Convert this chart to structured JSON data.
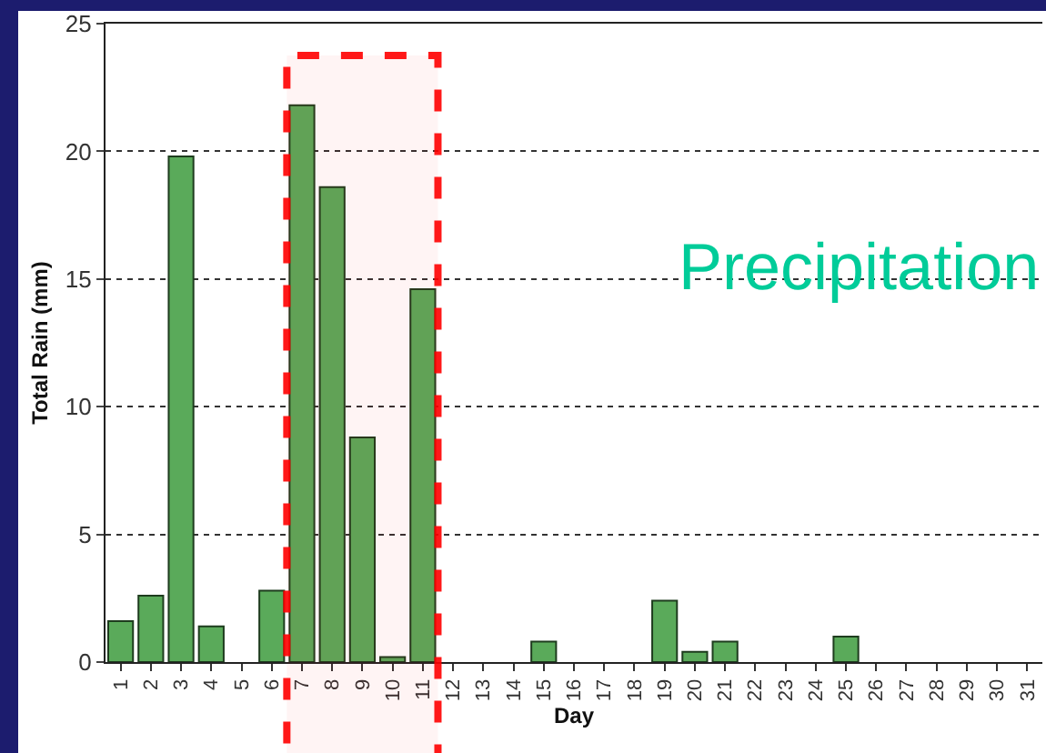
{
  "chart_data": {
    "type": "bar",
    "xlabel": "Day",
    "ylabel": "Total Rain (mm)",
    "categories": [
      "1",
      "2",
      "3",
      "4",
      "5",
      "6",
      "7",
      "8",
      "9",
      "10",
      "11",
      "12",
      "13",
      "14",
      "15",
      "16",
      "17",
      "18",
      "19",
      "20",
      "21",
      "22",
      "23",
      "24",
      "25",
      "26",
      "27",
      "28",
      "29",
      "30",
      "31"
    ],
    "values": [
      1.6,
      2.6,
      19.8,
      1.4,
      0,
      2.8,
      21.8,
      18.6,
      8.8,
      0.2,
      14.6,
      0,
      0,
      0,
      0.8,
      0,
      0,
      0,
      2.4,
      0.4,
      0.8,
      0,
      0,
      0,
      1.0,
      0,
      0,
      0,
      0,
      0,
      0
    ],
    "color": "#5aaa5a",
    "ylim": [
      0,
      25
    ],
    "yticks": [
      0,
      5,
      10,
      15,
      20,
      25
    ],
    "grid": "y",
    "bands": [
      {
        "axis": "x",
        "from": "7",
        "to": "11",
        "label": null,
        "color": "#ff0000"
      }
    ],
    "annotations": [
      "Precipitation"
    ]
  }
}
